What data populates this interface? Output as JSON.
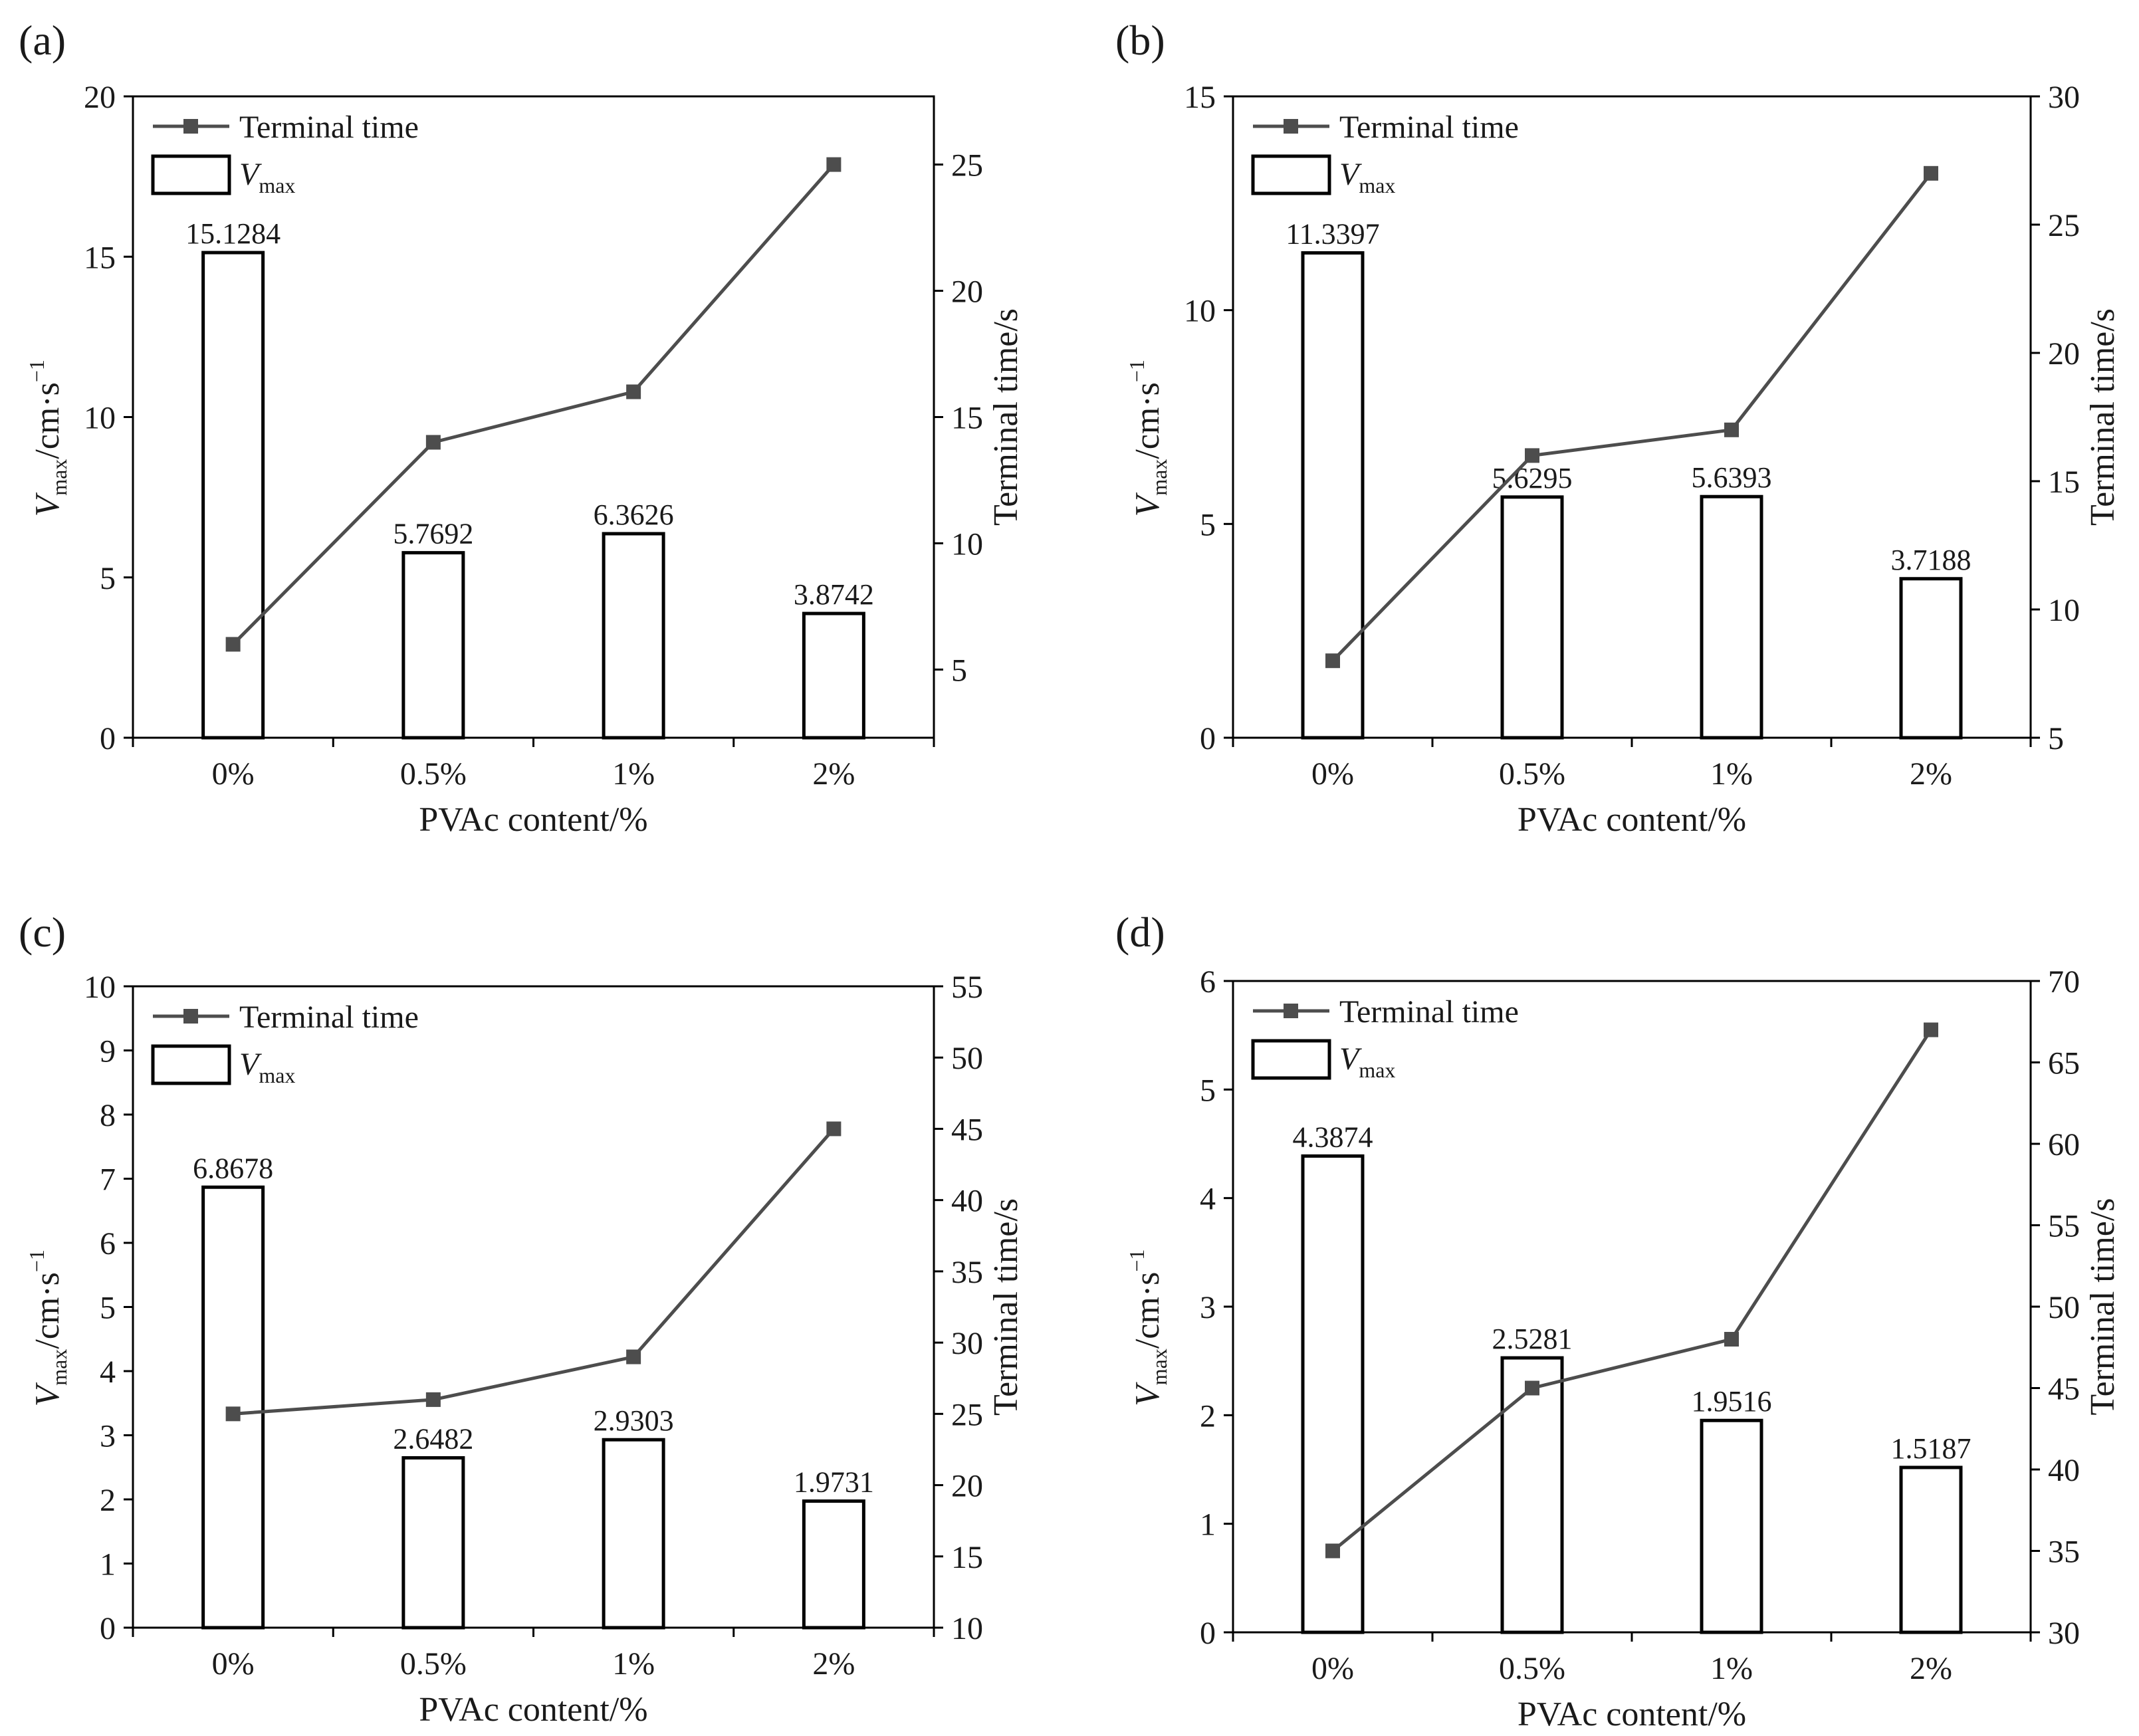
{
  "figure": {
    "legend": {
      "line_label": "Terminal time",
      "bar_label_main": "V",
      "bar_label_sub": "max"
    },
    "left_axis_title": {
      "main": "V",
      "sub": "max",
      "units": "/cm·s",
      "sup": "−1"
    },
    "right_axis_title": "Terminal time/s",
    "x_axis_title": "PVAc content/%"
  },
  "colors": {
    "line": "#4d4d4d",
    "bar_edge": "#000000",
    "axes": "#000000",
    "text": "#1a1a1a"
  },
  "chart_data": [
    {
      "panel": "(a)",
      "type": "bar+line",
      "categories": [
        "0%",
        "0.5%",
        "1%",
        "2%"
      ],
      "bar_values": [
        15.1284,
        5.7692,
        6.3626,
        3.8742
      ],
      "bar_labels": [
        "15.1284",
        "5.7692",
        "6.3626",
        "3.8742"
      ],
      "line_values": [
        6,
        14,
        16,
        25
      ],
      "ylim_left": [
        0,
        20
      ],
      "yticks_left": [
        "0",
        "5",
        "10",
        "15",
        "20"
      ],
      "ylim_right": [
        2.3,
        27.7
      ],
      "yticks_right": [
        "5",
        "10",
        "15",
        "20",
        "25"
      ]
    },
    {
      "panel": "(b)",
      "type": "bar+line",
      "categories": [
        "0%",
        "0.5%",
        "1%",
        "2%"
      ],
      "bar_values": [
        11.3397,
        5.6295,
        5.6393,
        3.7188
      ],
      "bar_labels": [
        "11.3397",
        "5.6295",
        "5.6393",
        "3.7188"
      ],
      "line_values": [
        8,
        16,
        17,
        27
      ],
      "ylim_left": [
        0,
        15
      ],
      "yticks_left": [
        "0",
        "5",
        "10",
        "15"
      ],
      "ylim_right": [
        5,
        30
      ],
      "yticks_right": [
        "5",
        "10",
        "15",
        "20",
        "25",
        "30"
      ]
    },
    {
      "panel": "(c)",
      "type": "bar+line",
      "categories": [
        "0%",
        "0.5%",
        "1%",
        "2%"
      ],
      "bar_values": [
        6.8678,
        2.6482,
        2.9303,
        1.9731
      ],
      "bar_labels": [
        "6.8678",
        "2.6482",
        "2.9303",
        "1.9731"
      ],
      "line_values": [
        25,
        26,
        29,
        45
      ],
      "ylim_left": [
        0,
        10
      ],
      "yticks_left": [
        "0",
        "1",
        "2",
        "3",
        "4",
        "5",
        "6",
        "7",
        "8",
        "9",
        "10"
      ],
      "ylim_right": [
        10,
        55
      ],
      "yticks_right": [
        "10",
        "15",
        "20",
        "25",
        "30",
        "35",
        "40",
        "45",
        "50",
        "55"
      ]
    },
    {
      "panel": "(d)",
      "type": "bar+line",
      "categories": [
        "0%",
        "0.5%",
        "1%",
        "2%"
      ],
      "bar_values": [
        4.3874,
        2.5281,
        1.9516,
        1.5187
      ],
      "bar_labels": [
        "4.3874",
        "2.5281",
        "1.9516",
        "1.5187"
      ],
      "line_values": [
        35,
        45,
        48,
        67
      ],
      "ylim_left": [
        0,
        6
      ],
      "yticks_left": [
        "0",
        "1",
        "2",
        "3",
        "4",
        "5",
        "6"
      ],
      "ylim_right": [
        30,
        70
      ],
      "yticks_right": [
        "30",
        "35",
        "40",
        "45",
        "50",
        "55",
        "60",
        "65",
        "70"
      ]
    }
  ]
}
